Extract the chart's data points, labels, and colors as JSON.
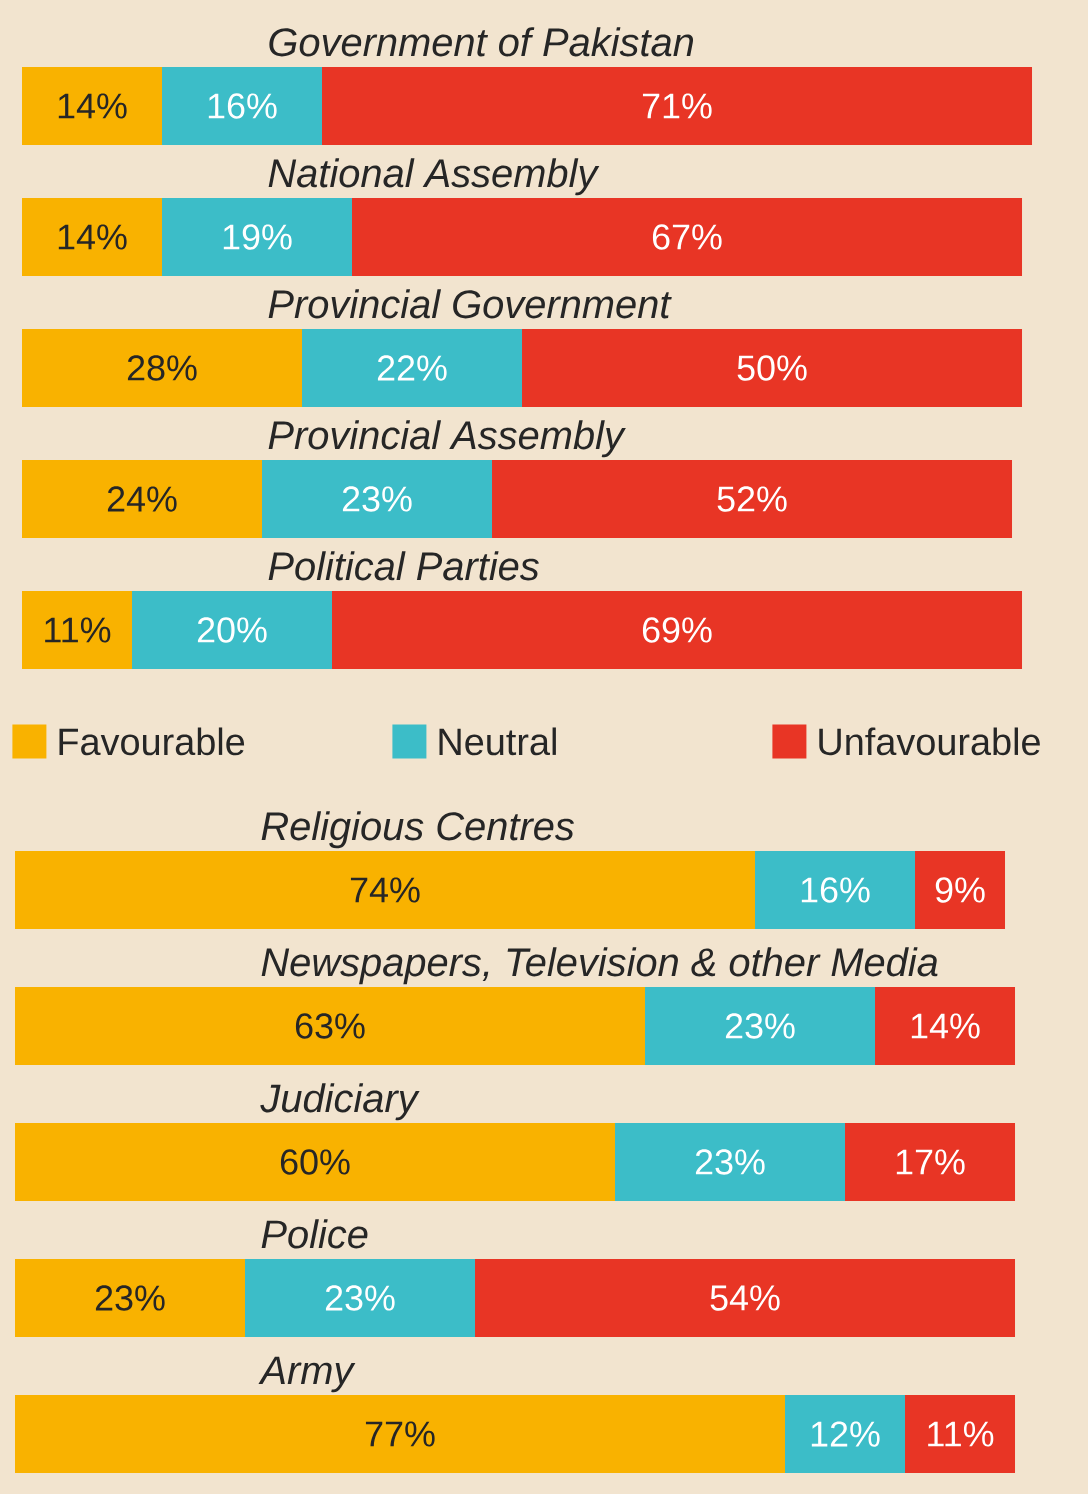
{
  "chart_data": [
    {
      "type": "bar",
      "orientation": "horizontal",
      "stacked": true,
      "legend": "bottom",
      "categories": [
        "Government of Pakistan",
        "National Assembly",
        "Provincial Government",
        "Provincial Assembly",
        "Political Parties"
      ],
      "series": [
        {
          "name": "Favourable",
          "color": "#f9b200",
          "values": [
            14,
            14,
            28,
            24,
            11
          ],
          "value_labels": [
            "14%",
            "14%",
            "28%",
            "24%",
            "11%"
          ]
        },
        {
          "name": "Neutral",
          "color": "#3cbdc8",
          "values": [
            16,
            19,
            22,
            23,
            20
          ],
          "value_labels": [
            "16%",
            "19%",
            "22%",
            "23%",
            "20%"
          ]
        },
        {
          "name": "Unfavourable",
          "color": "#e83525",
          "values": [
            71,
            67,
            50,
            52,
            69
          ],
          "value_labels": [
            "71%",
            "67%",
            "50%",
            "52%",
            "69%"
          ]
        }
      ]
    },
    {
      "type": "bar",
      "orientation": "horizontal",
      "stacked": true,
      "categories": [
        "Religious Centres",
        "Newspapers, Television & other Media",
        "Judiciary",
        "Police",
        "Army"
      ],
      "series": [
        {
          "color": "#f9b200",
          "values": [
            74,
            63,
            60,
            23,
            77
          ],
          "value_labels": [
            "74%",
            "63%",
            "60%",
            "23%",
            "77%"
          ]
        },
        {
          "color": "#3cbdc8",
          "values": [
            16,
            23,
            23,
            23,
            12
          ],
          "value_labels": [
            "16%",
            "23%",
            "23%",
            "23%",
            "12%"
          ]
        },
        {
          "color": "#e83525",
          "values": [
            9,
            14,
            17,
            54,
            11
          ],
          "value_labels": [
            "9%",
            "14%",
            "17%",
            "54%",
            "11%"
          ]
        }
      ]
    }
  ]
}
